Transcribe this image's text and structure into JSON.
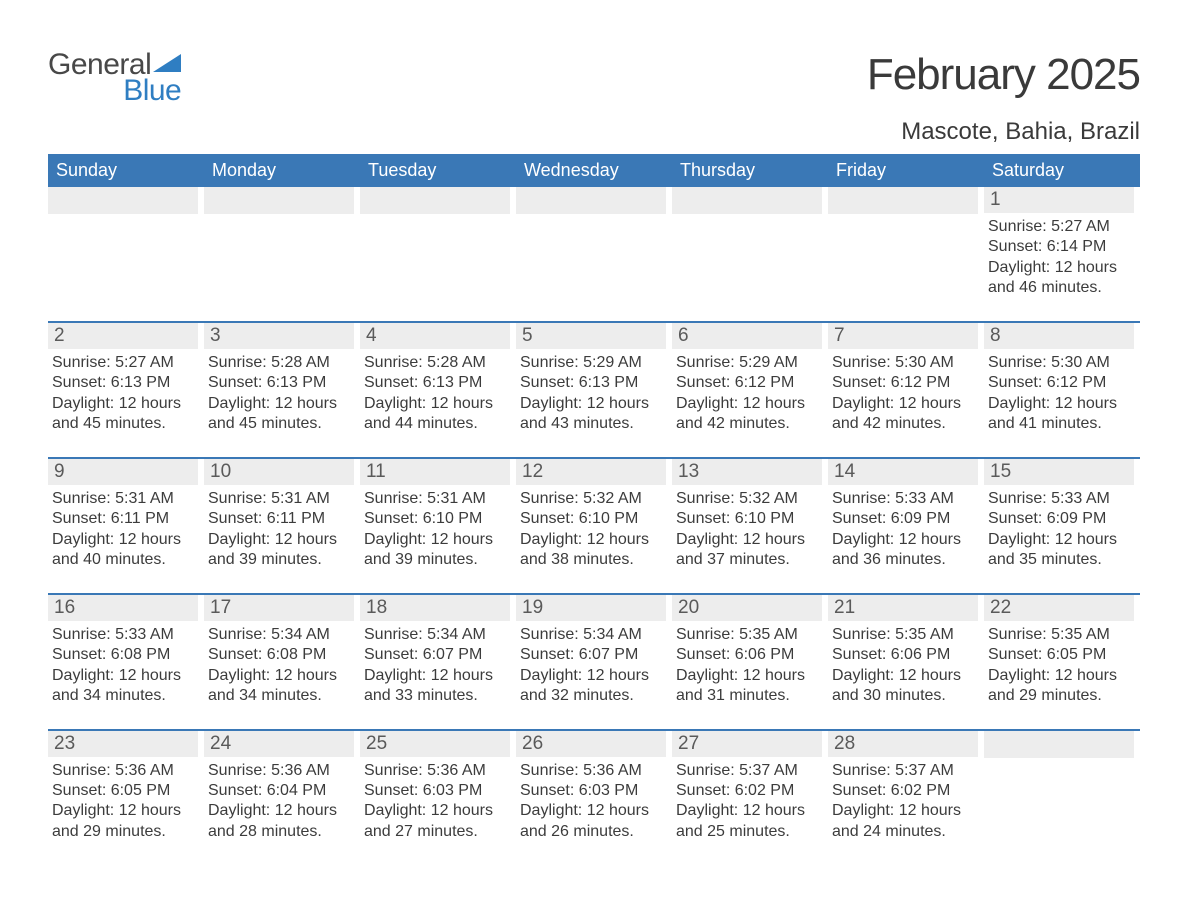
{
  "logo": {
    "general": "General",
    "blue": "Blue",
    "mark_color": "#2f7ec2"
  },
  "title": "February 2025",
  "location": "Mascote, Bahia, Brazil",
  "colors": {
    "header_bg": "#3a78b6",
    "header_text": "#ffffff",
    "daystrip_bg": "#ededed",
    "text": "#3a3a3a",
    "rule": "#3a78b6"
  },
  "fonts": {
    "family": "Arial",
    "title_size": 44,
    "location_size": 24,
    "dow_size": 18,
    "body_size": 16
  },
  "dow": [
    "Sunday",
    "Monday",
    "Tuesday",
    "Wednesday",
    "Thursday",
    "Friday",
    "Saturday"
  ],
  "weeks": [
    [
      null,
      null,
      null,
      null,
      null,
      null,
      {
        "n": "1",
        "sunrise": "5:27 AM",
        "sunset": "6:14 PM",
        "daylight": "12 hours and 46 minutes."
      }
    ],
    [
      {
        "n": "2",
        "sunrise": "5:27 AM",
        "sunset": "6:13 PM",
        "daylight": "12 hours and 45 minutes."
      },
      {
        "n": "3",
        "sunrise": "5:28 AM",
        "sunset": "6:13 PM",
        "daylight": "12 hours and 45 minutes."
      },
      {
        "n": "4",
        "sunrise": "5:28 AM",
        "sunset": "6:13 PM",
        "daylight": "12 hours and 44 minutes."
      },
      {
        "n": "5",
        "sunrise": "5:29 AM",
        "sunset": "6:13 PM",
        "daylight": "12 hours and 43 minutes."
      },
      {
        "n": "6",
        "sunrise": "5:29 AM",
        "sunset": "6:12 PM",
        "daylight": "12 hours and 42 minutes."
      },
      {
        "n": "7",
        "sunrise": "5:30 AM",
        "sunset": "6:12 PM",
        "daylight": "12 hours and 42 minutes."
      },
      {
        "n": "8",
        "sunrise": "5:30 AM",
        "sunset": "6:12 PM",
        "daylight": "12 hours and 41 minutes."
      }
    ],
    [
      {
        "n": "9",
        "sunrise": "5:31 AM",
        "sunset": "6:11 PM",
        "daylight": "12 hours and 40 minutes."
      },
      {
        "n": "10",
        "sunrise": "5:31 AM",
        "sunset": "6:11 PM",
        "daylight": "12 hours and 39 minutes."
      },
      {
        "n": "11",
        "sunrise": "5:31 AM",
        "sunset": "6:10 PM",
        "daylight": "12 hours and 39 minutes."
      },
      {
        "n": "12",
        "sunrise": "5:32 AM",
        "sunset": "6:10 PM",
        "daylight": "12 hours and 38 minutes."
      },
      {
        "n": "13",
        "sunrise": "5:32 AM",
        "sunset": "6:10 PM",
        "daylight": "12 hours and 37 minutes."
      },
      {
        "n": "14",
        "sunrise": "5:33 AM",
        "sunset": "6:09 PM",
        "daylight": "12 hours and 36 minutes."
      },
      {
        "n": "15",
        "sunrise": "5:33 AM",
        "sunset": "6:09 PM",
        "daylight": "12 hours and 35 minutes."
      }
    ],
    [
      {
        "n": "16",
        "sunrise": "5:33 AM",
        "sunset": "6:08 PM",
        "daylight": "12 hours and 34 minutes."
      },
      {
        "n": "17",
        "sunrise": "5:34 AM",
        "sunset": "6:08 PM",
        "daylight": "12 hours and 34 minutes."
      },
      {
        "n": "18",
        "sunrise": "5:34 AM",
        "sunset": "6:07 PM",
        "daylight": "12 hours and 33 minutes."
      },
      {
        "n": "19",
        "sunrise": "5:34 AM",
        "sunset": "6:07 PM",
        "daylight": "12 hours and 32 minutes."
      },
      {
        "n": "20",
        "sunrise": "5:35 AM",
        "sunset": "6:06 PM",
        "daylight": "12 hours and 31 minutes."
      },
      {
        "n": "21",
        "sunrise": "5:35 AM",
        "sunset": "6:06 PM",
        "daylight": "12 hours and 30 minutes."
      },
      {
        "n": "22",
        "sunrise": "5:35 AM",
        "sunset": "6:05 PM",
        "daylight": "12 hours and 29 minutes."
      }
    ],
    [
      {
        "n": "23",
        "sunrise": "5:36 AM",
        "sunset": "6:05 PM",
        "daylight": "12 hours and 29 minutes."
      },
      {
        "n": "24",
        "sunrise": "5:36 AM",
        "sunset": "6:04 PM",
        "daylight": "12 hours and 28 minutes."
      },
      {
        "n": "25",
        "sunrise": "5:36 AM",
        "sunset": "6:03 PM",
        "daylight": "12 hours and 27 minutes."
      },
      {
        "n": "26",
        "sunrise": "5:36 AM",
        "sunset": "6:03 PM",
        "daylight": "12 hours and 26 minutes."
      },
      {
        "n": "27",
        "sunrise": "5:37 AM",
        "sunset": "6:02 PM",
        "daylight": "12 hours and 25 minutes."
      },
      {
        "n": "28",
        "sunrise": "5:37 AM",
        "sunset": "6:02 PM",
        "daylight": "12 hours and 24 minutes."
      },
      null
    ]
  ],
  "labels": {
    "sunrise": "Sunrise: ",
    "sunset": "Sunset: ",
    "daylight": "Daylight: "
  }
}
